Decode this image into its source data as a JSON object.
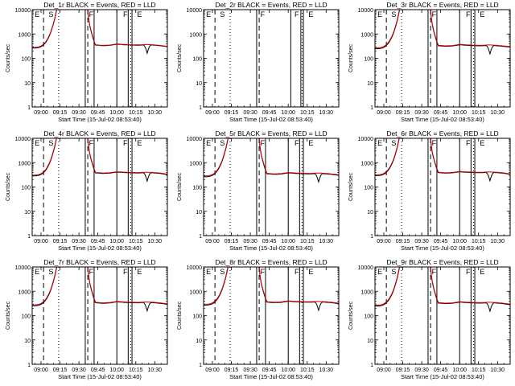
{
  "chart_data": [
    {
      "type": "line",
      "title": "Det_1r BLACK = Events, RED = LLD",
      "xlabel": "Start Time (15-Jul-02 08:53:40)",
      "ylabel": "Counts/sec",
      "x_tick_labels": [
        "09:00",
        "09:15",
        "09:30",
        "09:45",
        "10:00",
        "10:15",
        "10:30"
      ],
      "y_tick_labels": [
        "1",
        "10",
        "100",
        "1000",
        "10000"
      ],
      "ylim": [
        1,
        10000
      ],
      "yscale": "log",
      "xlim_minutes": [
        -7,
        100
      ],
      "gap_start_min": 12.5,
      "gap_end_min": 37,
      "black_level": [
        350,
        330,
        340,
        380,
        360,
        350,
        345,
        360,
        350,
        330,
        300
      ],
      "red_level": [
        360,
        340,
        350,
        390,
        370,
        360,
        355,
        370,
        360,
        340,
        310
      ],
      "dip": {
        "at_min": 84,
        "depth": 150
      },
      "markers": {
        "solid": [
          35,
          42,
          60,
          69,
          72
        ],
        "dashed": [
          2,
          37
        ],
        "dotted": [
          14,
          71
        ],
        "letters": [
          "E",
          "S",
          "F",
          "F",
          "E"
        ]
      },
      "series": [
        {
          "name": "Events",
          "color": "#000000"
        },
        {
          "name": "LLD",
          "color": "#d40000"
        }
      ]
    },
    {
      "type": "line",
      "title": "Det_2r BLACK = Events, RED = LLD",
      "xlabel": "Start Time (15-Jul-02 08:53:40)",
      "ylabel": "Counts/sec",
      "x_tick_labels": [
        "09:00",
        "09:15",
        "09:30",
        "09:45",
        "10:00",
        "10:15",
        "10:30"
      ],
      "y_tick_labels": [
        "1",
        "10",
        "100",
        "1000",
        "10000"
      ],
      "ylim": [
        1,
        10000
      ],
      "yscale": "log",
      "xlim_minutes": [
        -7,
        100
      ],
      "gap_start_min": 12.5,
      "gap_end_min": 37,
      "black_level": [],
      "red_level": [],
      "dip": null,
      "markers": {
        "solid": [
          35,
          62,
          70,
          72
        ],
        "dashed": [
          2,
          37
        ],
        "dotted": [
          14,
          71
        ],
        "letters": [
          "E",
          "S",
          "F",
          "F",
          "E"
        ]
      },
      "series": [
        {
          "name": "Events",
          "color": "#000000"
        },
        {
          "name": "LLD",
          "color": "#d40000"
        }
      ]
    },
    {
      "type": "line",
      "title": "Det_3r BLACK = Events, RED = LLD",
      "xlabel": "Start Time (15-Jul-02 08:53:40)",
      "ylabel": "Counts/sec",
      "x_tick_labels": [
        "09:00",
        "09:15",
        "09:30",
        "09:45",
        "10:00",
        "10:15",
        "10:30"
      ],
      "y_tick_labels": [
        "1",
        "10",
        "100",
        "1000",
        "10000"
      ],
      "ylim": [
        1,
        10000
      ],
      "yscale": "log",
      "xlim_minutes": [
        -7,
        100
      ],
      "gap_start_min": 12.5,
      "gap_end_min": 37,
      "black_level": [
        330,
        310,
        320,
        360,
        340,
        330,
        325,
        340,
        330,
        310,
        290
      ],
      "red_level": [
        345,
        325,
        335,
        375,
        355,
        345,
        340,
        355,
        345,
        325,
        305
      ],
      "dip": {
        "at_min": 84,
        "depth": 180
      },
      "markers": {
        "solid": [
          35,
          42,
          60,
          69,
          72
        ],
        "dashed": [
          2,
          37
        ],
        "dotted": [
          14,
          71
        ],
        "letters": [
          "E",
          "S",
          "F",
          "F",
          "E"
        ]
      },
      "series": [
        {
          "name": "Events",
          "color": "#000000"
        },
        {
          "name": "LLD",
          "color": "#d40000"
        }
      ]
    },
    {
      "type": "line",
      "title": "Det_4r BLACK = Events, RED = LLD",
      "xlabel": "Start Time (15-Jul-02 08:53:40)",
      "ylabel": "Counts/sec",
      "x_tick_labels": [
        "09:00",
        "09:15",
        "09:30",
        "09:45",
        "10:00",
        "10:15",
        "10:30"
      ],
      "y_tick_labels": [
        "1",
        "10",
        "100",
        "1000",
        "10000"
      ],
      "ylim": [
        1,
        10000
      ],
      "yscale": "log",
      "xlim_minutes": [
        -7,
        100
      ],
      "gap_start_min": 12.5,
      "gap_end_min": 37,
      "black_level": [
        380,
        360,
        370,
        410,
        390,
        380,
        375,
        390,
        380,
        360,
        320
      ],
      "red_level": [
        395,
        375,
        385,
        425,
        405,
        395,
        390,
        405,
        395,
        375,
        335
      ],
      "dip": {
        "at_min": 84,
        "depth": 200
      },
      "markers": {
        "solid": [
          35,
          42,
          60,
          69,
          72
        ],
        "dashed": [
          2,
          37
        ],
        "dotted": [
          14,
          71
        ],
        "letters": [
          "E",
          "S",
          "F",
          "F",
          "E"
        ]
      },
      "series": [
        {
          "name": "Events",
          "color": "#000000"
        },
        {
          "name": "LLD",
          "color": "#d40000"
        }
      ]
    },
    {
      "type": "line",
      "title": "Det_5r BLACK = Events, RED = LLD",
      "xlabel": "Start Time (15-Jul-02 08:53:40)",
      "ylabel": "Counts/sec",
      "x_tick_labels": [
        "09:00",
        "09:15",
        "09:30",
        "09:45",
        "10:00",
        "10:15",
        "10:30"
      ],
      "y_tick_labels": [
        "1",
        "10",
        "100",
        "1000",
        "10000"
      ],
      "ylim": [
        1,
        10000
      ],
      "yscale": "log",
      "xlim_minutes": [
        -7,
        100
      ],
      "gap_start_min": 12.5,
      "gap_end_min": 37,
      "black_level": [
        350,
        330,
        340,
        380,
        360,
        350,
        345,
        360,
        350,
        330,
        300
      ],
      "red_level": [
        365,
        345,
        355,
        395,
        375,
        365,
        360,
        375,
        365,
        345,
        315
      ],
      "dip": {
        "at_min": 84,
        "depth": 160
      },
      "markers": {
        "solid": [
          35,
          42,
          60,
          69,
          72
        ],
        "dashed": [
          2,
          37
        ],
        "dotted": [
          14,
          71
        ],
        "letters": [
          "E",
          "S",
          "F",
          "F",
          "E"
        ]
      },
      "series": [
        {
          "name": "Events",
          "color": "#000000"
        },
        {
          "name": "LLD",
          "color": "#d40000"
        }
      ]
    },
    {
      "type": "line",
      "title": "Det_6r BLACK = Events, RED = LLD",
      "xlabel": "Start Time (15-Jul-02 08:53:40)",
      "ylabel": "Counts/sec",
      "x_tick_labels": [
        "09:00",
        "09:15",
        "09:30",
        "09:45",
        "10:00",
        "10:15",
        "10:30"
      ],
      "y_tick_labels": [
        "1",
        "10",
        "100",
        "1000",
        "10000"
      ],
      "ylim": [
        1,
        10000
      ],
      "yscale": "log",
      "xlim_minutes": [
        -7,
        100
      ],
      "gap_start_min": 12.5,
      "gap_end_min": 37,
      "black_level": [
        390,
        370,
        380,
        420,
        400,
        390,
        385,
        400,
        390,
        370,
        330
      ],
      "red_level": [
        405,
        385,
        395,
        435,
        415,
        405,
        400,
        415,
        405,
        385,
        345
      ],
      "dip": {
        "at_min": 84,
        "depth": 190
      },
      "markers": {
        "solid": [
          35,
          42,
          60,
          69,
          72
        ],
        "dashed": [
          2,
          37
        ],
        "dotted": [
          14,
          71
        ],
        "letters": [
          "E",
          "S",
          "F",
          "F",
          "E"
        ]
      },
      "series": [
        {
          "name": "Events",
          "color": "#000000"
        },
        {
          "name": "LLD",
          "color": "#d40000"
        }
      ]
    },
    {
      "type": "line",
      "title": "Det_7r BLACK = Events, RED = LLD",
      "xlabel": "Start Time (15-Jul-02 08:53:40)",
      "ylabel": "Counts/sec",
      "x_tick_labels": [
        "09:00",
        "09:15",
        "09:30",
        "09:45",
        "10:00",
        "10:15",
        "10:30"
      ],
      "y_tick_labels": [
        "1",
        "10",
        "100",
        "1000",
        "10000"
      ],
      "ylim": [
        1,
        10000
      ],
      "yscale": "log",
      "xlim_minutes": [
        -7,
        100
      ],
      "gap_start_min": 12.5,
      "gap_end_min": 37,
      "black_level": [
        340,
        320,
        330,
        370,
        350,
        340,
        335,
        350,
        340,
        320,
        290
      ],
      "red_level": [
        355,
        335,
        345,
        385,
        365,
        355,
        350,
        365,
        355,
        335,
        305
      ],
      "dip": {
        "at_min": 84,
        "depth": 170
      },
      "markers": {
        "solid": [
          35,
          42,
          60,
          69,
          72
        ],
        "dashed": [
          2,
          37
        ],
        "dotted": [
          14,
          71
        ],
        "letters": [
          "E",
          "S",
          "F",
          "F",
          "E"
        ]
      },
      "series": [
        {
          "name": "Events",
          "color": "#000000"
        },
        {
          "name": "LLD",
          "color": "#d40000"
        }
      ]
    },
    {
      "type": "line",
      "title": "Det_8r BLACK = Events, RED = LLD",
      "xlabel": "Start Time (15-Jul-02 08:53:40)",
      "ylabel": "Counts/sec",
      "x_tick_labels": [
        "09:00",
        "09:15",
        "09:30",
        "09:45",
        "10:00",
        "10:15",
        "10:30"
      ],
      "y_tick_labels": [
        "1",
        "10",
        "100",
        "1000",
        "10000"
      ],
      "ylim": [
        1,
        10000
      ],
      "yscale": "log",
      "xlim_minutes": [
        -7,
        100
      ],
      "gap_start_min": 12.5,
      "gap_end_min": 37,
      "black_level": [
        360,
        340,
        350,
        390,
        370,
        360,
        355,
        370,
        360,
        340,
        310
      ],
      "red_level": [
        375,
        355,
        365,
        405,
        385,
        375,
        370,
        385,
        375,
        355,
        325
      ],
      "dip": {
        "at_min": 84,
        "depth": 150
      },
      "markers": {
        "solid": [
          35,
          42,
          60,
          69,
          72
        ],
        "dashed": [
          2,
          37
        ],
        "dotted": [
          14,
          71
        ],
        "letters": [
          "E",
          "S",
          "F",
          "F",
          "E"
        ]
      },
      "series": [
        {
          "name": "Events",
          "color": "#000000"
        },
        {
          "name": "LLD",
          "color": "#d40000"
        }
      ]
    },
    {
      "type": "line",
      "title": "Det_9r BLACK = Events, RED = LLD",
      "xlabel": "Start Time (15-Jul-02 08:53:40)",
      "ylabel": "Counts/sec",
      "x_tick_labels": [
        "09:00",
        "09:15",
        "09:30",
        "09:45",
        "10:00",
        "10:15",
        "10:30"
      ],
      "y_tick_labels": [
        "1",
        "10",
        "100",
        "1000",
        "10000"
      ],
      "ylim": [
        1,
        10000
      ],
      "yscale": "log",
      "xlim_minutes": [
        -7,
        100
      ],
      "gap_start_min": 12.5,
      "gap_end_min": 37,
      "black_level": [
        330,
        310,
        320,
        360,
        340,
        330,
        325,
        340,
        330,
        310,
        280
      ],
      "red_level": [
        345,
        325,
        335,
        375,
        355,
        345,
        340,
        355,
        345,
        325,
        295
      ],
      "dip": {
        "at_min": 84,
        "depth": 140
      },
      "markers": {
        "solid": [
          35,
          42,
          60,
          69,
          72
        ],
        "dashed": [
          2,
          37
        ],
        "dotted": [
          14,
          71
        ],
        "letters": [
          "E",
          "S",
          "F",
          "F",
          "E"
        ]
      },
      "series": [
        {
          "name": "Events",
          "color": "#000000"
        },
        {
          "name": "LLD",
          "color": "#d40000"
        }
      ]
    }
  ]
}
